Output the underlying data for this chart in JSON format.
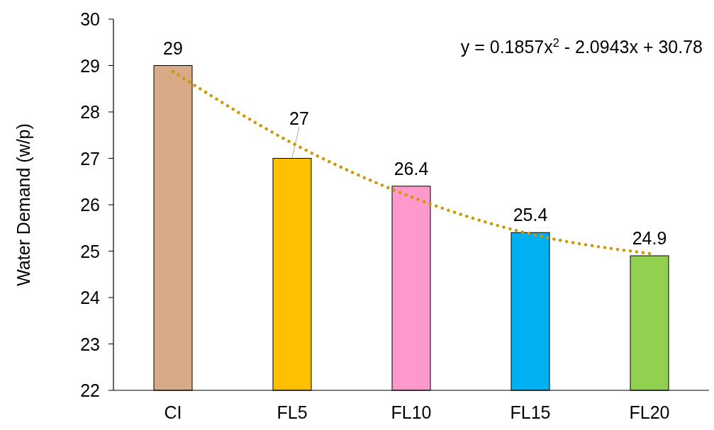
{
  "chart_data": {
    "type": "bar",
    "ylabel": "Water Demand (w/p)",
    "categories": [
      "CI",
      "FL5",
      "FL10",
      "FL15",
      "FL20"
    ],
    "series": [
      {
        "colors": [
          "#d8ab86",
          "#ffc000",
          "#ff99cc",
          "#00b0f0",
          "#92d050"
        ],
        "values": [
          29,
          27,
          26.4,
          25.4,
          24.9
        ],
        "value_labels": [
          "29",
          "27",
          "26.4",
          "25.4",
          "24.9"
        ]
      },
      {
        "type": "line",
        "x": [
          "CI",
          "FL5",
          "FL10",
          "FL15",
          "FL20"
        ],
        "values": [
          28.87,
          27.33,
          26.17,
          25.37,
          24.95
        ],
        "color": "#c99a06",
        "line_style": "dotted"
      }
    ],
    "ylim": [
      22,
      30
    ],
    "yticks": [
      22,
      23,
      24,
      25,
      26,
      27,
      28,
      29,
      30
    ],
    "grid": false,
    "annotations": [
      "y = 0.1857x$^{2}$ - 2.0943x + 30.78"
    ]
  }
}
